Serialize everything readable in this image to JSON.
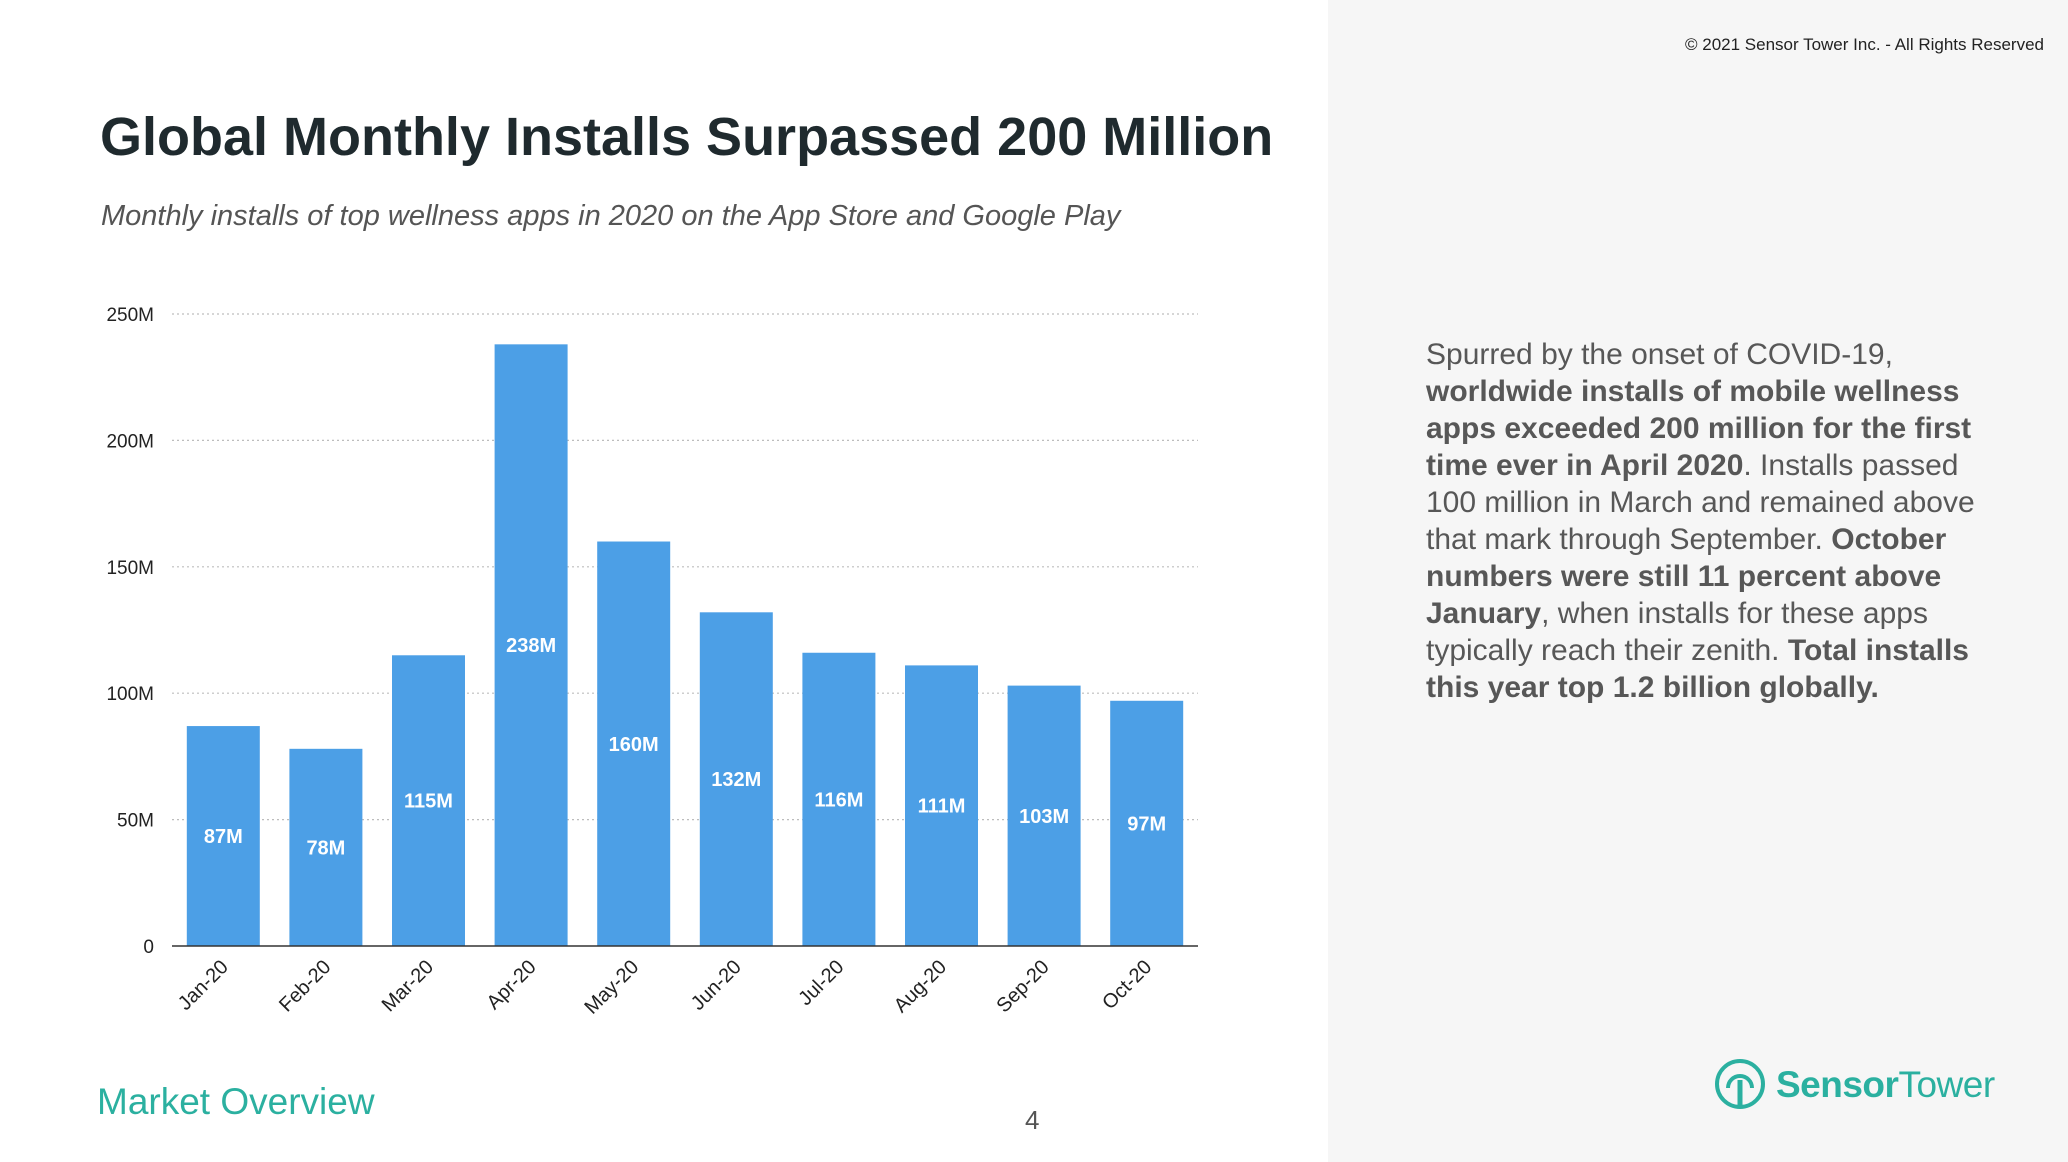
{
  "copyright": "© 2021 Sensor Tower Inc. - All Rights Reserved",
  "title": "Global Monthly Installs Surpassed 200 Million",
  "subtitle": "Monthly installs of top wellness apps in 2020 on the App Store and Google Play",
  "summary": [
    {
      "text": "Spurred by the onset of COVID-19, ",
      "bold": false
    },
    {
      "text": "worldwide installs of mobile wellness apps exceeded 200 million for the first time ever in April 2020",
      "bold": true
    },
    {
      "text": ". Installs passed 100 million in March and remained above that mark through September. ",
      "bold": false
    },
    {
      "text": "October numbers were still 11 percent above January",
      "bold": true
    },
    {
      "text": ", when installs for these apps typically reach their zenith. ",
      "bold": false
    },
    {
      "text": "Total installs this year top 1.2 billion globally.",
      "bold": true
    }
  ],
  "footer": {
    "section": "Market Overview",
    "page_number": "4"
  },
  "logo": {
    "brand_bold": "Sensor",
    "brand_light": "Tower",
    "icon": "sensor-tower-icon",
    "color": "#2bb0a0"
  },
  "chart_data": {
    "type": "bar",
    "categories": [
      "Jan-20",
      "Feb-20",
      "Mar-20",
      "Apr-20",
      "May-20",
      "Jun-20",
      "Jul-20",
      "Aug-20",
      "Sep-20",
      "Oct-20"
    ],
    "values": [
      87,
      78,
      115,
      238,
      160,
      132,
      116,
      111,
      103,
      97
    ],
    "data_labels": [
      "87M",
      "78M",
      "115M",
      "238M",
      "160M",
      "132M",
      "116M",
      "111M",
      "103M",
      "97M"
    ],
    "ylim": [
      0,
      250
    ],
    "yticks": [
      0,
      50,
      100,
      150,
      200,
      250
    ],
    "ytick_labels": [
      "0",
      "50M",
      "100M",
      "150M",
      "200M",
      "250M"
    ],
    "bar_color": "#4c9fe6",
    "label_color": "#ffffff",
    "grid": true,
    "legend": false
  }
}
